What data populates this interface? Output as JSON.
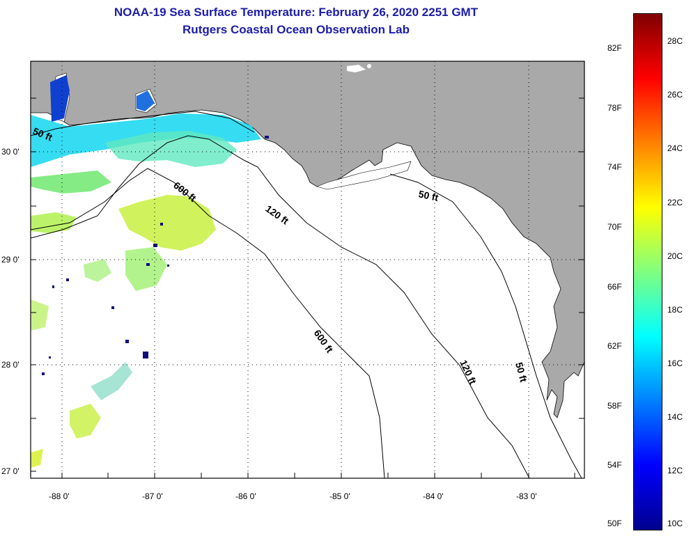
{
  "title": "NOAA-19 Sea Surface Temperature:  February 26, 2020 2251 GMT",
  "subtitle": "Rutgers Coastal Ocean Observation Lab",
  "latitude_labels": [
    {
      "label": "30 0'",
      "value": 30.0
    },
    {
      "label": "29 0'",
      "value": 29.0
    },
    {
      "label": "28 0'",
      "value": 28.0
    },
    {
      "label": "27 0'",
      "value": 27.0
    }
  ],
  "longitude_labels": [
    {
      "label": "-88 0'",
      "value": -88.0
    },
    {
      "label": "-87 0'",
      "value": -87.0
    },
    {
      "label": "-86 0'",
      "value": -86.0
    },
    {
      "label": "-85 0'",
      "value": -85.0
    },
    {
      "label": "-84 0'",
      "value": -84.0
    },
    {
      "label": "-83 0'",
      "value": -83.0
    }
  ],
  "depth_contours": [
    {
      "label": "50 ft"
    },
    {
      "label": "600 ft"
    },
    {
      "label": "120 ft"
    },
    {
      "label": "50 ft"
    },
    {
      "label": "600 ft"
    },
    {
      "label": "120 ft"
    },
    {
      "label": "50 ft"
    }
  ],
  "colorbar": {
    "fahrenheit": [
      "82F",
      "78F",
      "74F",
      "70F",
      "66F",
      "62F",
      "58F",
      "54F",
      "50F"
    ],
    "celsius": [
      "28C",
      "26C",
      "24C",
      "22C",
      "20C",
      "18C",
      "16C",
      "14C",
      "12C",
      "10C"
    ],
    "range_celsius": [
      10,
      29
    ]
  },
  "colors": {
    "land": "#a9a9a9",
    "title": "#1c1ca8",
    "colormap": [
      "#00008f",
      "#0000ff",
      "#0080ff",
      "#00ffff",
      "#80ff80",
      "#ffff00",
      "#ff8000",
      "#ff0000",
      "#800000"
    ]
  }
}
